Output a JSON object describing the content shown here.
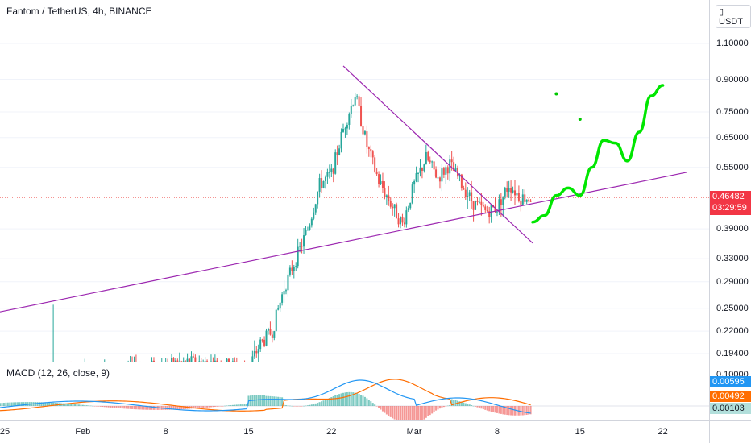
{
  "symbol_title": "Fantom / TetherUS, 4h, BINANCE",
  "currency": "USDT",
  "price_axis": {
    "ticks": [
      "1.10000",
      "0.90000",
      "0.75000",
      "0.65000",
      "0.55000",
      "0.39000",
      "0.33000",
      "0.29000",
      "0.25000",
      "0.22000",
      "0.19400"
    ]
  },
  "current_price": {
    "value": "0.46482",
    "countdown": "03:29:59",
    "color": "#f23645"
  },
  "time_axis": {
    "labels": [
      "25",
      "Feb",
      "8",
      "15",
      "22",
      "Mar",
      "8",
      "15",
      "22"
    ]
  },
  "macd": {
    "legend": "MACD (12, 26, close, 9)",
    "axis_tick": "0.10000",
    "badges": [
      {
        "value": "0.00595",
        "color": "#2196f3"
      },
      {
        "value": "0.00492",
        "color": "#ff6d00"
      },
      {
        "value": "0.00103",
        "color": "#b2dfdb"
      }
    ]
  },
  "colors": {
    "up": "#26a69a",
    "down": "#ef5350",
    "trendline": "#9c27b0",
    "projection": "#00e600",
    "macd_line": "#2196f3",
    "signal_line": "#ff6d00"
  },
  "chart_data": {
    "type": "candlestick",
    "title": "Fantom / TetherUS, 4h, BINANCE",
    "y_scale": "log",
    "ylim": [
      0.175,
      1.35
    ],
    "xlim": [
      "2021-01-25",
      "2021-03-24"
    ],
    "close_path": [
      [
        "2021-01-29",
        0.172
      ],
      [
        "2021-02-05",
        0.178
      ],
      [
        "2021-02-10",
        0.185
      ],
      [
        "2021-02-15",
        0.18
      ],
      [
        "2021-02-16",
        0.205
      ],
      [
        "2021-02-17",
        0.22
      ],
      [
        "2021-02-18",
        0.28
      ],
      [
        "2021-02-19",
        0.33
      ],
      [
        "2021-02-20",
        0.39
      ],
      [
        "2021-02-21",
        0.5
      ],
      [
        "2021-02-22",
        0.53
      ],
      [
        "2021-02-23",
        0.68
      ],
      [
        "2021-02-24",
        0.83
      ],
      [
        "2021-02-25",
        0.62
      ],
      [
        "2021-02-26",
        0.51
      ],
      [
        "2021-02-27",
        0.45
      ],
      [
        "2021-02-28",
        0.4
      ],
      [
        "2021-03-01",
        0.5
      ],
      [
        "2021-03-02",
        0.58
      ],
      [
        "2021-03-03",
        0.52
      ],
      [
        "2021-03-04",
        0.56
      ],
      [
        "2021-03-05",
        0.5
      ],
      [
        "2021-03-06",
        0.45
      ],
      [
        "2021-03-07",
        0.43
      ],
      [
        "2021-03-08",
        0.44
      ],
      [
        "2021-03-09",
        0.5
      ],
      [
        "2021-03-10",
        0.465
      ]
    ],
    "last_price": 0.46482,
    "trendlines": [
      {
        "name": "support",
        "from": [
          "2021-01-25",
          0.245
        ],
        "to": [
          "2021-03-24",
          0.535
        ]
      },
      {
        "name": "resistance",
        "from": [
          "2021-02-23",
          0.97
        ],
        "to": [
          "2021-03-11",
          0.36
        ]
      }
    ],
    "projection": [
      [
        "2021-03-11",
        0.405
      ],
      [
        "2021-03-12",
        0.42
      ],
      [
        "2021-03-13",
        0.47
      ],
      [
        "2021-03-14",
        0.49
      ],
      [
        "2021-03-15",
        0.47
      ],
      [
        "2021-03-16",
        0.55
      ],
      [
        "2021-03-17",
        0.64
      ],
      [
        "2021-03-18",
        0.63
      ],
      [
        "2021-03-19",
        0.57
      ],
      [
        "2021-03-20",
        0.67
      ],
      [
        "2021-03-21",
        0.82
      ],
      [
        "2021-03-22",
        0.87
      ]
    ],
    "projection_dots": [
      [
        "2021-03-13",
        0.83
      ],
      [
        "2021-03-15",
        0.72
      ]
    ],
    "macd": {
      "params": "12, 26, close, 9",
      "current": {
        "macd": 0.00595,
        "signal": 0.00492,
        "histogram": 0.00103
      }
    }
  }
}
